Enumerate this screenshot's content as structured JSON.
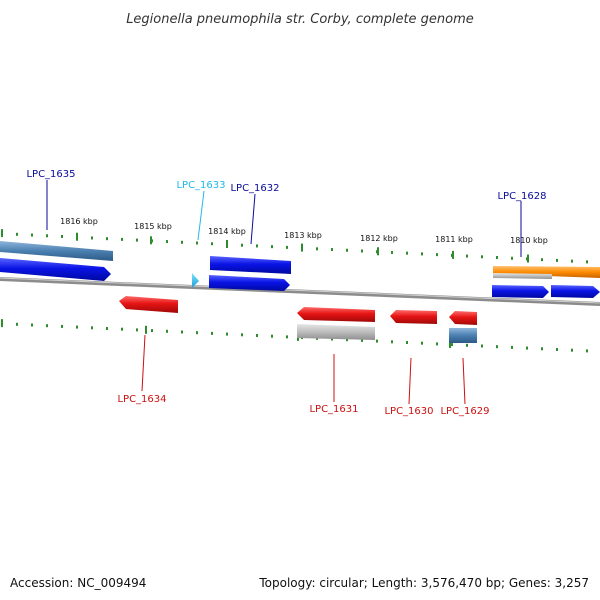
{
  "title": "Legionella pneumophila str. Corby, complete genome",
  "footer": {
    "accession": "Accession: NC_009494",
    "summary": "Topology: circular; Length: 3,576,470 bp; Genes: 3,257"
  },
  "colors": {
    "background": "#ffffff",
    "backbone": "#8c8c8c",
    "tick": "#2e8b2e",
    "forward_gene": "#0a14e6",
    "reverse_gene": "#e61414",
    "pseudo_gene": "#20b8e8",
    "forward_label": "#0a0a9a",
    "reverse_label": "#cc1010",
    "feature_steelblue": "#4a7fb0",
    "feature_gray": "#bdbdbd",
    "feature_orange": "#ff8c00"
  },
  "scale": {
    "unit": "kbp",
    "ticks": [
      "1816 kbp",
      "1815 kbp",
      "1814 kbp",
      "1813 kbp",
      "1812 kbp",
      "1811 kbp",
      "1810 kbp"
    ]
  },
  "genes": [
    {
      "name": "LPC_1635",
      "strand": "forward"
    },
    {
      "name": "LPC_1634",
      "strand": "reverse"
    },
    {
      "name": "LPC_1633",
      "strand": "forward",
      "type": "pseudo"
    },
    {
      "name": "LPC_1632",
      "strand": "forward"
    },
    {
      "name": "LPC_1631",
      "strand": "reverse"
    },
    {
      "name": "LPC_1630",
      "strand": "reverse"
    },
    {
      "name": "LPC_1629",
      "strand": "reverse"
    },
    {
      "name": "LPC_1628",
      "strand": "forward"
    }
  ],
  "feature_tracks": [
    {
      "icon": "steelblue-feature-bar"
    },
    {
      "icon": "gray-feature-bar"
    },
    {
      "icon": "orange-feature-bar"
    }
  ]
}
